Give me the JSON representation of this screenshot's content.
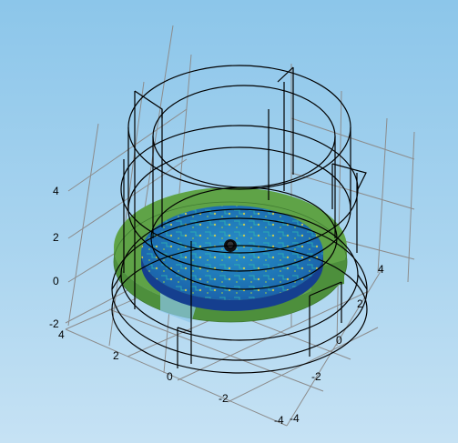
{
  "scene": {
    "axes": {
      "z_ticks": [
        "4",
        "2",
        "0",
        "-2"
      ],
      "x_ticks": [
        "4",
        "2",
        "0",
        "-2",
        "-4"
      ],
      "y_ticks": [
        "4",
        "2",
        "0",
        "-2",
        "-4"
      ]
    },
    "colors": {
      "background_top": "#8cc6ea",
      "background_bottom": "#c6e2f4",
      "pcb_board": "#5b9f45",
      "solution_surface": "#1e6fb5",
      "wireframe": "#000000",
      "grid": "#8c8c8c"
    }
  }
}
